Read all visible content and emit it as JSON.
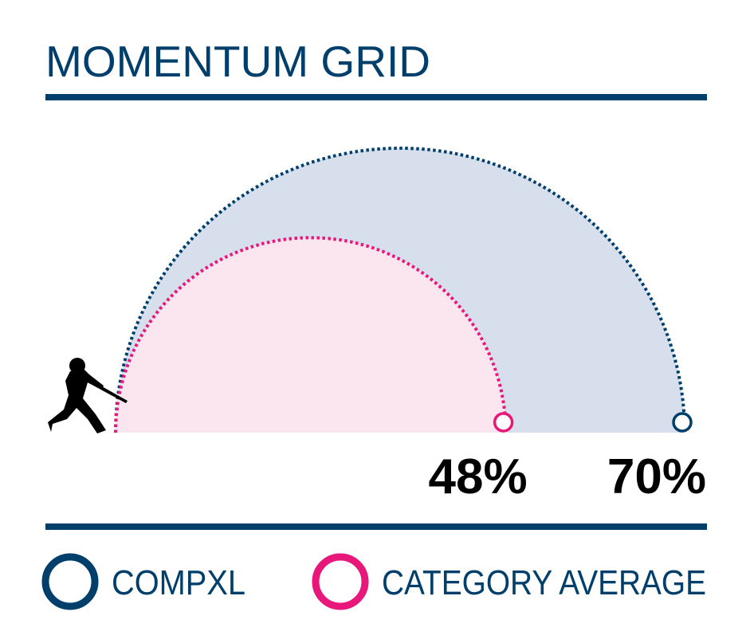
{
  "chart_data": {
    "type": "semicircle-comparison",
    "title": "MOMENTUM GRID",
    "unit": "%",
    "series": [
      {
        "name": "COMPXL",
        "value": 70,
        "label": "70%",
        "color": "#003f6b",
        "fill": "#d6dfeb"
      },
      {
        "name": "CATEGORY AVERAGE",
        "value": 48,
        "label": "48%",
        "color": "#e8177a",
        "fill": "#fbe6ef"
      }
    ],
    "icon": "baseball-batter-icon",
    "legend_position": "bottom"
  }
}
